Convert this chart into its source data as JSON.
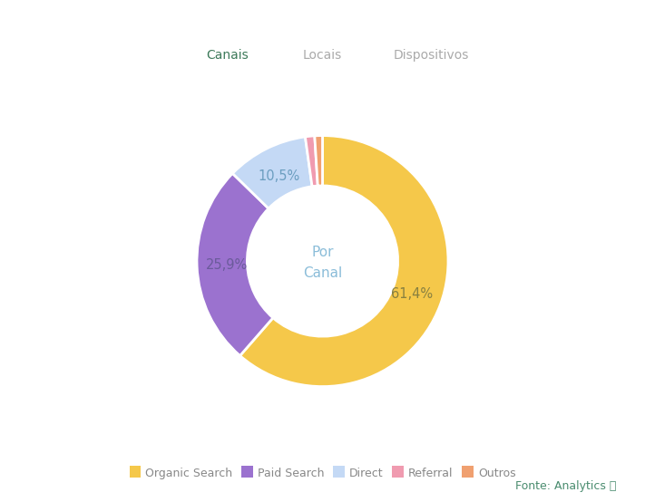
{
  "slices": [
    61.4,
    25.9,
    10.5,
    1.2,
    1.0
  ],
  "labels": [
    "Organic Search",
    "Paid Search",
    "Direct",
    "Referral",
    "Outros"
  ],
  "colors": [
    "#F5C84A",
    "#9B72CF",
    "#C4D9F5",
    "#F09BB0",
    "#F0A070"
  ],
  "center_text_line1": "Por",
  "center_text_line2": "Canal",
  "center_text_color": "#8BBDD9",
  "tab_labels": [
    "Canais",
    "Locais",
    "Dispositivos"
  ],
  "tab_active_color": "#3D7A5A",
  "tab_active_bg": "#E6EEE9",
  "tab_underline_color": "#2D6B4A",
  "tab_inactive_color": "#AAAAAA",
  "footer_text": "Fonte: Analytics ⧉",
  "footer_color": "#4A8C6F",
  "bg_color": "#FFFFFF",
  "legend_text_color": "#888888",
  "pct_label_configs": [
    {
      "idx": 0,
      "text": "61,4%",
      "color": "#888040"
    },
    {
      "idx": 1,
      "text": "25,9%",
      "color": "#6B5B9B"
    },
    {
      "idx": 2,
      "text": "10,5%",
      "color": "#6B9EC0"
    }
  ]
}
